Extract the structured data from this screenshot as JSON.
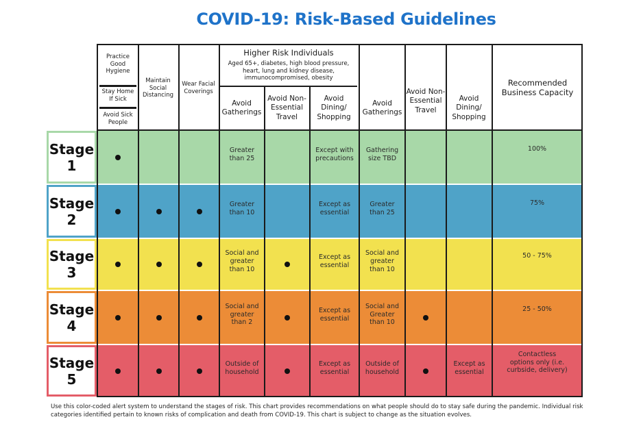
{
  "title": "COVID-19: Risk-Based Guidelines",
  "header": {
    "hygiene": "Practice Good Hygiene",
    "stay_home": "Stay Home If Sick",
    "avoid_sick": "Avoid Sick People",
    "distancing": "Maintain Social Distancing",
    "face": "Wear Facial Coverings",
    "higher_risk_title": "Higher Risk Individuals",
    "higher_risk_desc": "Aged 65+, diabetes, high blood pressure, heart, lung and kidney disease, immunocompromised, obesity",
    "hr_gatherings": "Avoid Gatherings",
    "hr_travel": "Avoid Non-Essential Travel",
    "hr_dining": "Avoid Dining/ Shopping",
    "gatherings": "Avoid Gatherings",
    "travel": "Avoid Non- Essential Travel",
    "dining": "Avoid Dining/ Shopping",
    "capacity": "Recommended Business Capacity"
  },
  "stages": [
    {
      "label": "Stage 1",
      "color": "#a8d8a8",
      "border": "#a8d8a8",
      "hygiene": true,
      "distancing": false,
      "face": false,
      "hr_gatherings": "Greater than 25",
      "hr_travel": "",
      "hr_dining": "Except with precautions",
      "gatherings": "Gathering size TBD",
      "travel": "",
      "dining": "",
      "capacity": "100%"
    },
    {
      "label": "Stage 2",
      "color": "#4fa3c8",
      "border": "#4fa3c8",
      "hygiene": true,
      "distancing": true,
      "face": true,
      "hr_gatherings": "Greater than 10",
      "hr_travel": "",
      "hr_dining": "Except as essential",
      "gatherings": "Greater than 25",
      "travel": "",
      "dining": "",
      "capacity": "75%"
    },
    {
      "label": "Stage 3",
      "color": "#f2e14f",
      "border": "#f2e14f",
      "hygiene": true,
      "distancing": true,
      "face": true,
      "hr_gatherings": "Social and greater than 10",
      "hr_travel": "dot",
      "hr_dining": "Except as essential",
      "gatherings": "Social and greater than 10",
      "travel": "",
      "dining": "",
      "capacity": "50 - 75%"
    },
    {
      "label": "Stage 4",
      "color": "#ec8c37",
      "border": "#ec8c37",
      "hygiene": true,
      "distancing": true,
      "face": true,
      "hr_gatherings": "Social and greater than 2",
      "hr_travel": "dot",
      "hr_dining": "Except as essential",
      "gatherings": "Social and Greater than 10",
      "travel": "dot",
      "dining": "",
      "capacity": "25 - 50%"
    },
    {
      "label": "Stage 5",
      "color": "#e45d68",
      "border": "#e45d68",
      "hygiene": true,
      "distancing": true,
      "face": true,
      "hr_gatherings": "Outside of household",
      "hr_travel": "dot",
      "hr_dining": "Except as essential",
      "gatherings": "Outside of household",
      "travel": "dot",
      "dining": "Except as essential",
      "capacity": "Contactless options only (i.e. curbside, delivery)"
    }
  ],
  "footer": "Use this color-coded alert system to understand the stages of risk. This chart provides recommendations on what people should do to stay safe during the pandemic. Individual risk categories identified pertain to known risks of complication and death from COVID-19. This chart is subject to change as the situation evolves."
}
